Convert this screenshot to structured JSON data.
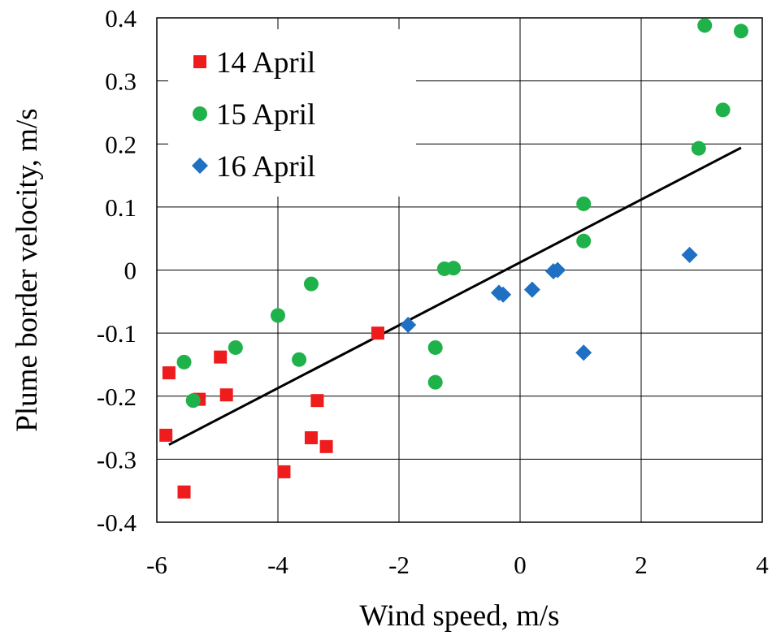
{
  "chart_data": {
    "type": "scatter",
    "xlabel": "Wind speed, m/s",
    "ylabel": "Plume border velocity, m/s",
    "xlim": [
      -6,
      4
    ],
    "ylim": [
      -0.4,
      0.4
    ],
    "xticks": [
      -6,
      -4,
      -2,
      0,
      2,
      4
    ],
    "yticks": [
      -0.4,
      -0.3,
      -0.2,
      -0.1,
      0,
      0.1,
      0.2,
      0.3,
      0.4
    ],
    "xtick_labels": [
      "-6",
      "-4",
      "-2",
      "0",
      "2",
      "4"
    ],
    "ytick_labels": [
      "-0.4",
      "-0.3",
      "-0.2",
      "-0.1",
      "0",
      "0.1",
      "0.2",
      "0.3",
      "0.4"
    ],
    "grid": true,
    "legend_position": "top-left",
    "series": [
      {
        "name": "14 April",
        "marker": "square",
        "color": "#ee1c1c",
        "points": [
          {
            "x": -5.85,
            "y": -0.262
          },
          {
            "x": -5.8,
            "y": -0.163
          },
          {
            "x": -5.55,
            "y": -0.352
          },
          {
            "x": -5.3,
            "y": -0.205
          },
          {
            "x": -4.95,
            "y": -0.138
          },
          {
            "x": -4.85,
            "y": -0.198
          },
          {
            "x": -3.9,
            "y": -0.32
          },
          {
            "x": -3.45,
            "y": -0.266
          },
          {
            "x": -3.35,
            "y": -0.207
          },
          {
            "x": -3.2,
            "y": -0.28
          },
          {
            "x": -2.35,
            "y": -0.1
          }
        ]
      },
      {
        "name": "15 April",
        "marker": "circle",
        "color": "#1fb24a",
        "points": [
          {
            "x": -5.55,
            "y": -0.146
          },
          {
            "x": -5.4,
            "y": -0.207
          },
          {
            "x": -4.7,
            "y": -0.123
          },
          {
            "x": -4.0,
            "y": -0.072
          },
          {
            "x": -3.65,
            "y": -0.142
          },
          {
            "x": -3.45,
            "y": -0.022
          },
          {
            "x": -1.4,
            "y": -0.123
          },
          {
            "x": -1.4,
            "y": -0.178
          },
          {
            "x": -1.25,
            "y": 0.002
          },
          {
            "x": -1.1,
            "y": 0.003
          },
          {
            "x": 1.05,
            "y": 0.105
          },
          {
            "x": 1.05,
            "y": 0.046
          },
          {
            "x": 2.95,
            "y": 0.193
          },
          {
            "x": 3.05,
            "y": 0.388
          },
          {
            "x": 3.35,
            "y": 0.254
          },
          {
            "x": 3.65,
            "y": 0.379
          }
        ]
      },
      {
        "name": "16 April",
        "marker": "diamond",
        "color": "#1f6fc2",
        "points": [
          {
            "x": -1.85,
            "y": -0.087
          },
          {
            "x": -0.35,
            "y": -0.036
          },
          {
            "x": -0.28,
            "y": -0.039
          },
          {
            "x": 0.2,
            "y": -0.031
          },
          {
            "x": 0.55,
            "y": -0.002
          },
          {
            "x": 0.62,
            "y": 0.0
          },
          {
            "x": 1.05,
            "y": -0.131
          },
          {
            "x": 2.8,
            "y": 0.024
          }
        ]
      }
    ],
    "trendline": {
      "x": [
        -5.8,
        3.65
      ],
      "y": [
        -0.277,
        0.194
      ],
      "color": "#000000"
    }
  }
}
